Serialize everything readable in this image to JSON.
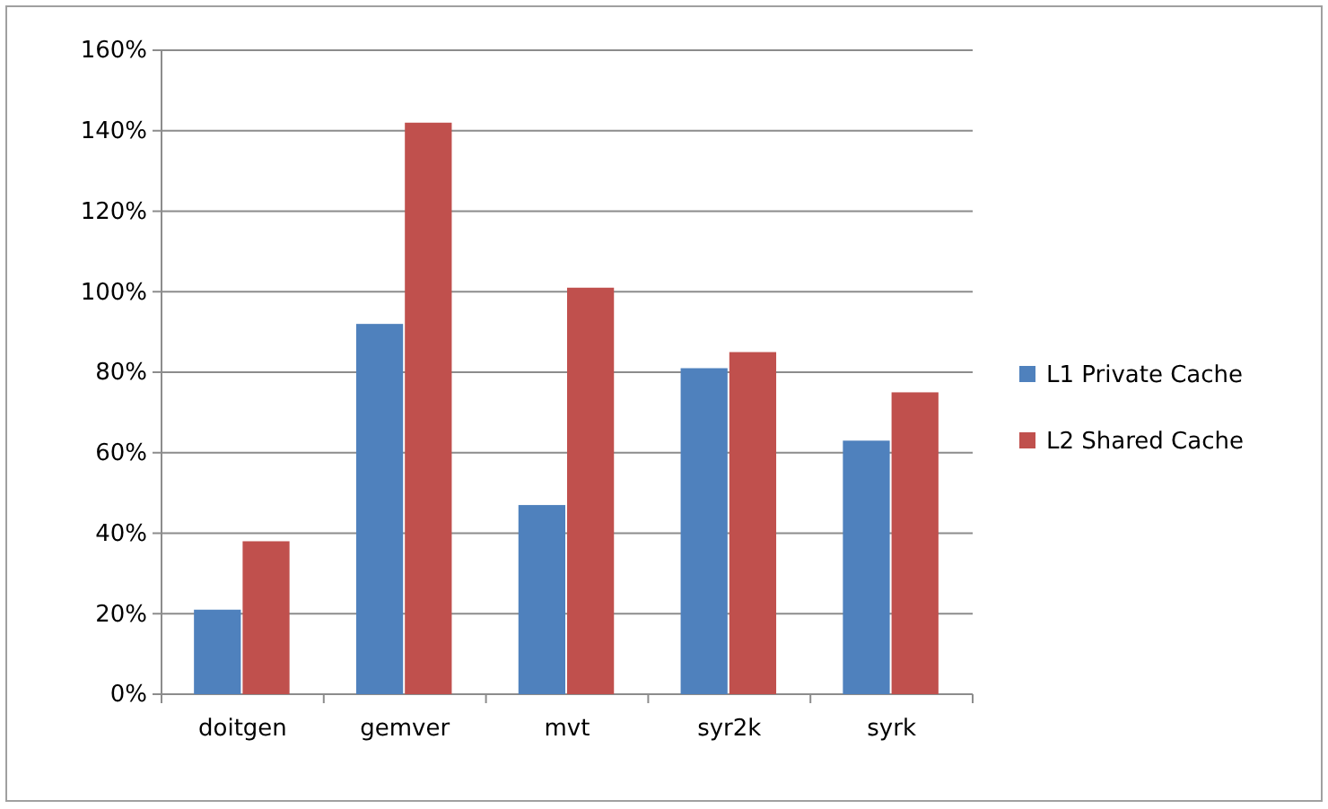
{
  "chart_data": {
    "type": "bar",
    "categories": [
      "doitgen",
      "gemver",
      "mvt",
      "syr2k",
      "syrk"
    ],
    "series": [
      {
        "name": "L1 Private Cache",
        "color": "#4f81bd",
        "values": [
          21,
          92,
          47,
          81,
          63
        ]
      },
      {
        "name": "L2 Shared Cache",
        "color": "#c0504d",
        "values": [
          38,
          142,
          101,
          85,
          75
        ]
      }
    ],
    "ylim": [
      0,
      160
    ],
    "yticks": [
      {
        "value": 0,
        "label": "0%"
      },
      {
        "value": 20,
        "label": "20%"
      },
      {
        "value": 40,
        "label": "40%"
      },
      {
        "value": 60,
        "label": "60%"
      },
      {
        "value": 80,
        "label": "80%"
      },
      {
        "value": 100,
        "label": "100%"
      },
      {
        "value": 120,
        "label": "120%"
      },
      {
        "value": 140,
        "label": "140%"
      },
      {
        "value": 160,
        "label": "160%"
      }
    ],
    "grid": "y",
    "legend": "right"
  }
}
